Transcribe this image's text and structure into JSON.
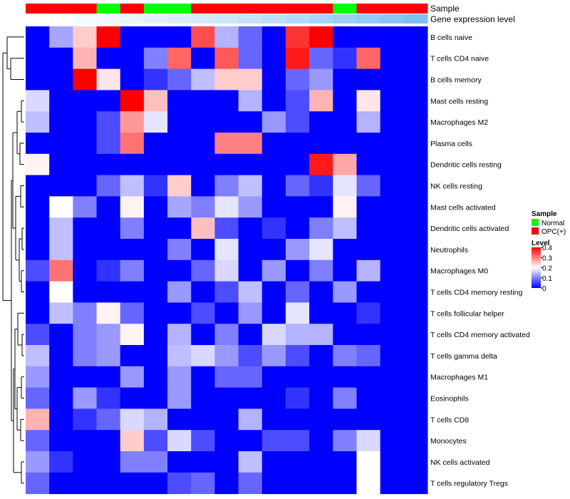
{
  "chart_data": {
    "type": "heatmap",
    "annotation_labels": [
      "Sample",
      "Gene expression level"
    ],
    "sample_groups": [
      "OPC(+)",
      "OPC(+)",
      "OPC(+)",
      "Normal",
      "OPC(+)",
      "Normal",
      "Normal",
      "OPC(+)",
      "OPC(+)",
      "OPC(+)",
      "OPC(+)",
      "OPC(+)",
      "OPC(+)",
      "Normal",
      "OPC(+)",
      "OPC(+)",
      "OPC(+)"
    ],
    "expression_shades": [
      "#ffffff",
      "#fbfdff",
      "#f5fafe",
      "#eff7fd",
      "#e9f4fd",
      "#e2f1fc",
      "#dbedfb",
      "#d4eafa",
      "#cde6f9",
      "#c4e2f9",
      "#bcdef8",
      "#b3daf7",
      "#a8d5f6",
      "#9ed0f4",
      "#93cbf4",
      "#89c6f2",
      "#7ec1f1"
    ],
    "rows": [
      "B cells naive",
      "T cells CD4 naive",
      "B cells memory",
      "Mast cells resting",
      "Macrophages M2",
      "Plasma cells",
      "Dendritic cells resting",
      "NK cells resting",
      "Mast cells activated",
      "Dendritic cells activated",
      "Neutrophils",
      "Macrophages M0",
      "T cells CD4 memory resting",
      "T cells follicular helper",
      "T cells CD4 memory activated",
      "T cells gamma delta",
      "Macrophages M1",
      "Eosinophils",
      "T cells CD8",
      "Monocytes",
      "NK cells activated",
      "T cells regulatory  Tregs"
    ],
    "values": [
      [
        0,
        0.13,
        0.24,
        0.4,
        0,
        0,
        0,
        0.34,
        0.14,
        0.08,
        0,
        0.36,
        0.4,
        0,
        0,
        0,
        0
      ],
      [
        0,
        0,
        0.26,
        0,
        0,
        0.1,
        0.32,
        0,
        0.33,
        0.08,
        0,
        0.38,
        0.08,
        0.04,
        0.32,
        0
      ],
      [
        0,
        0,
        0.4,
        0.22,
        0,
        0.04,
        0.08,
        0.15,
        0.24,
        0.24,
        0,
        0.08,
        0.12,
        0,
        0,
        0
      ],
      [
        0.17,
        0,
        0,
        0,
        0.4,
        0.25,
        0,
        0,
        0,
        0.14,
        0,
        0.06,
        0.26,
        0,
        0.22
      ],
      [
        0.15,
        0,
        0,
        0.06,
        0.28,
        0.18,
        0,
        0,
        0,
        0,
        0.12,
        0.06,
        0,
        0,
        0.14
      ],
      [
        0,
        0,
        0,
        0.06,
        0.31,
        0,
        0,
        0,
        0.3,
        0.3,
        0,
        0,
        0,
        0,
        0
      ],
      [
        0.21,
        0,
        0,
        0,
        0,
        0,
        0,
        0,
        0,
        0,
        0,
        0,
        0.38,
        0.27,
        0
      ],
      [
        0,
        0,
        0,
        0.08,
        0.15,
        0.04,
        0.24,
        0,
        0.1,
        0.15,
        0,
        0.08,
        0.04,
        0.18,
        0.08,
        0
      ],
      [
        0,
        0.2,
        0.1,
        0,
        0.21,
        0,
        0.13,
        0.1,
        0.18,
        0.12,
        0,
        0,
        0,
        0.21,
        0
      ],
      [
        0,
        0.15,
        0,
        0,
        0.1,
        0,
        0,
        0.25,
        0.06,
        0,
        0.04,
        0,
        0.1,
        0.15
      ],
      [
        0,
        0.15,
        0,
        0,
        0,
        0,
        0.1,
        0,
        0.18,
        0,
        0,
        0.12,
        0.18,
        0
      ],
      [
        0.06,
        0.31,
        0,
        0.04,
        0.1,
        0,
        0,
        0.08,
        0.17,
        0,
        0.12,
        0,
        0.1,
        0,
        0.14
      ],
      [
        0,
        0.2,
        0,
        0,
        0,
        0,
        0.12,
        0,
        0.06,
        0.15,
        0,
        0.08,
        0,
        0.12
      ],
      [
        0,
        0.15,
        0.1,
        0.21,
        0.08,
        0,
        0,
        0.06,
        0,
        0.12,
        0,
        0.18,
        0,
        0,
        0.04
      ],
      [
        0.06,
        0,
        0.1,
        0.12,
        0.21,
        0,
        0.14,
        0,
        0.1,
        0,
        0.17,
        0.14,
        0.14,
        0,
        0
      ],
      [
        0.15,
        0,
        0.1,
        0.12,
        0,
        0,
        0.15,
        0.17,
        0.12,
        0.06,
        0.12,
        0.06,
        0,
        0.1,
        0.08
      ],
      [
        0.12,
        0,
        0,
        0,
        0.12,
        0,
        0.12,
        0,
        0.08,
        0.08,
        0,
        0
      ],
      [
        0.08,
        0,
        0.12,
        0.04,
        0,
        0,
        0.12,
        0,
        0,
        0,
        0,
        0.04,
        0,
        0.1,
        0
      ],
      [
        0.26,
        0,
        0.04,
        0.08,
        0.17,
        0.14,
        0,
        0,
        0,
        0.14,
        0,
        0
      ],
      [
        0.08,
        0,
        0,
        0,
        0.24,
        0.06,
        0.17,
        0.06,
        0,
        0,
        0.06,
        0.06,
        0,
        0.1,
        0.17
      ],
      [
        0.12,
        0.04,
        0,
        0,
        0.1,
        0.1,
        0,
        0,
        0,
        0.15,
        0,
        0,
        0,
        0,
        0.2
      ],
      [
        0.08,
        0,
        0,
        0,
        0,
        0,
        0.06,
        0.08,
        0,
        0.08,
        0,
        0,
        0,
        0,
        0.2
      ]
    ],
    "scale": {
      "min": 0,
      "max": 0.4,
      "low_color": "#0000ff",
      "mid_color": "#ffffff",
      "high_color": "#ff0000"
    },
    "legend": {
      "sample_title": "Sample",
      "sample_items": [
        {
          "label": "Normal",
          "color": "#00ff00"
        },
        {
          "label": "OPC(+)",
          "color": "#ff0000"
        }
      ],
      "level_title": "Level",
      "level_ticks": [
        "0.4",
        "0.3",
        "0.2",
        "0.1",
        "0"
      ],
      "level_tick_values": [
        0.4,
        0.3,
        0.2,
        0.1,
        0
      ]
    }
  }
}
